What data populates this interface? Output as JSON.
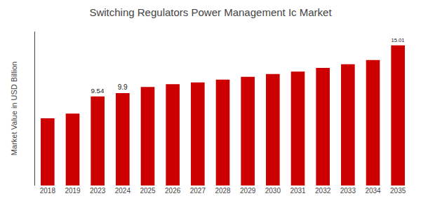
{
  "chart_data": {
    "type": "bar",
    "title": "Switching Regulators Power Management Ic Market",
    "ylabel": "Market Value in USD Billion",
    "categories": [
      "2018",
      "2019",
      "2023",
      "2024",
      "2025",
      "2026",
      "2027",
      "2028",
      "2029",
      "2030",
      "2031",
      "2032",
      "2033",
      "2034",
      "2035"
    ],
    "values": [
      7.2,
      7.7,
      9.54,
      9.9,
      10.55,
      10.85,
      11.05,
      11.35,
      11.65,
      11.95,
      12.2,
      12.6,
      13.0,
      13.45,
      15.01
    ],
    "value_labels": [
      null,
      null,
      "9.54",
      "9.9",
      null,
      null,
      null,
      null,
      null,
      null,
      null,
      null,
      null,
      null,
      "15.01"
    ],
    "color": "#cc0000",
    "ylim": [
      0,
      16.5
    ],
    "grid": false,
    "tick_labels": "x"
  }
}
